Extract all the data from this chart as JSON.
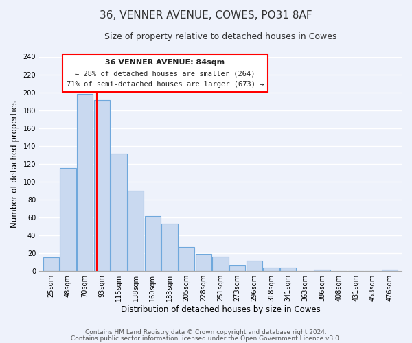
{
  "title": "36, VENNER AVENUE, COWES, PO31 8AF",
  "subtitle": "Size of property relative to detached houses in Cowes",
  "xlabel": "Distribution of detached houses by size in Cowes",
  "ylabel": "Number of detached properties",
  "bar_labels": [
    "25sqm",
    "48sqm",
    "70sqm",
    "93sqm",
    "115sqm",
    "138sqm",
    "160sqm",
    "183sqm",
    "205sqm",
    "228sqm",
    "251sqm",
    "273sqm",
    "296sqm",
    "318sqm",
    "341sqm",
    "363sqm",
    "386sqm",
    "408sqm",
    "431sqm",
    "453sqm",
    "476sqm"
  ],
  "bar_values": [
    15,
    115,
    198,
    191,
    131,
    90,
    61,
    53,
    27,
    19,
    16,
    6,
    11,
    4,
    4,
    0,
    1,
    0,
    0,
    0,
    1
  ],
  "bar_color": "#c9d9f0",
  "bar_edge_color": "#6fa8dc",
  "ylim": [
    0,
    240
  ],
  "yticks": [
    0,
    20,
    40,
    60,
    80,
    100,
    120,
    140,
    160,
    180,
    200,
    220,
    240
  ],
  "red_line_x": 2.7,
  "annotation_title": "36 VENNER AVENUE: 84sqm",
  "annotation_line1": "← 28% of detached houses are smaller (264)",
  "annotation_line2": "71% of semi-detached houses are larger (673) →",
  "footer_line1": "Contains HM Land Registry data © Crown copyright and database right 2024.",
  "footer_line2": "Contains public sector information licensed under the Open Government Licence v3.0.",
  "background_color": "#eef2fb",
  "plot_bg_color": "#eef2fb",
  "grid_color": "#ffffff",
  "title_fontsize": 11,
  "subtitle_fontsize": 9,
  "xlabel_fontsize": 8.5,
  "ylabel_fontsize": 8.5,
  "tick_fontsize": 7,
  "footer_fontsize": 6.5
}
